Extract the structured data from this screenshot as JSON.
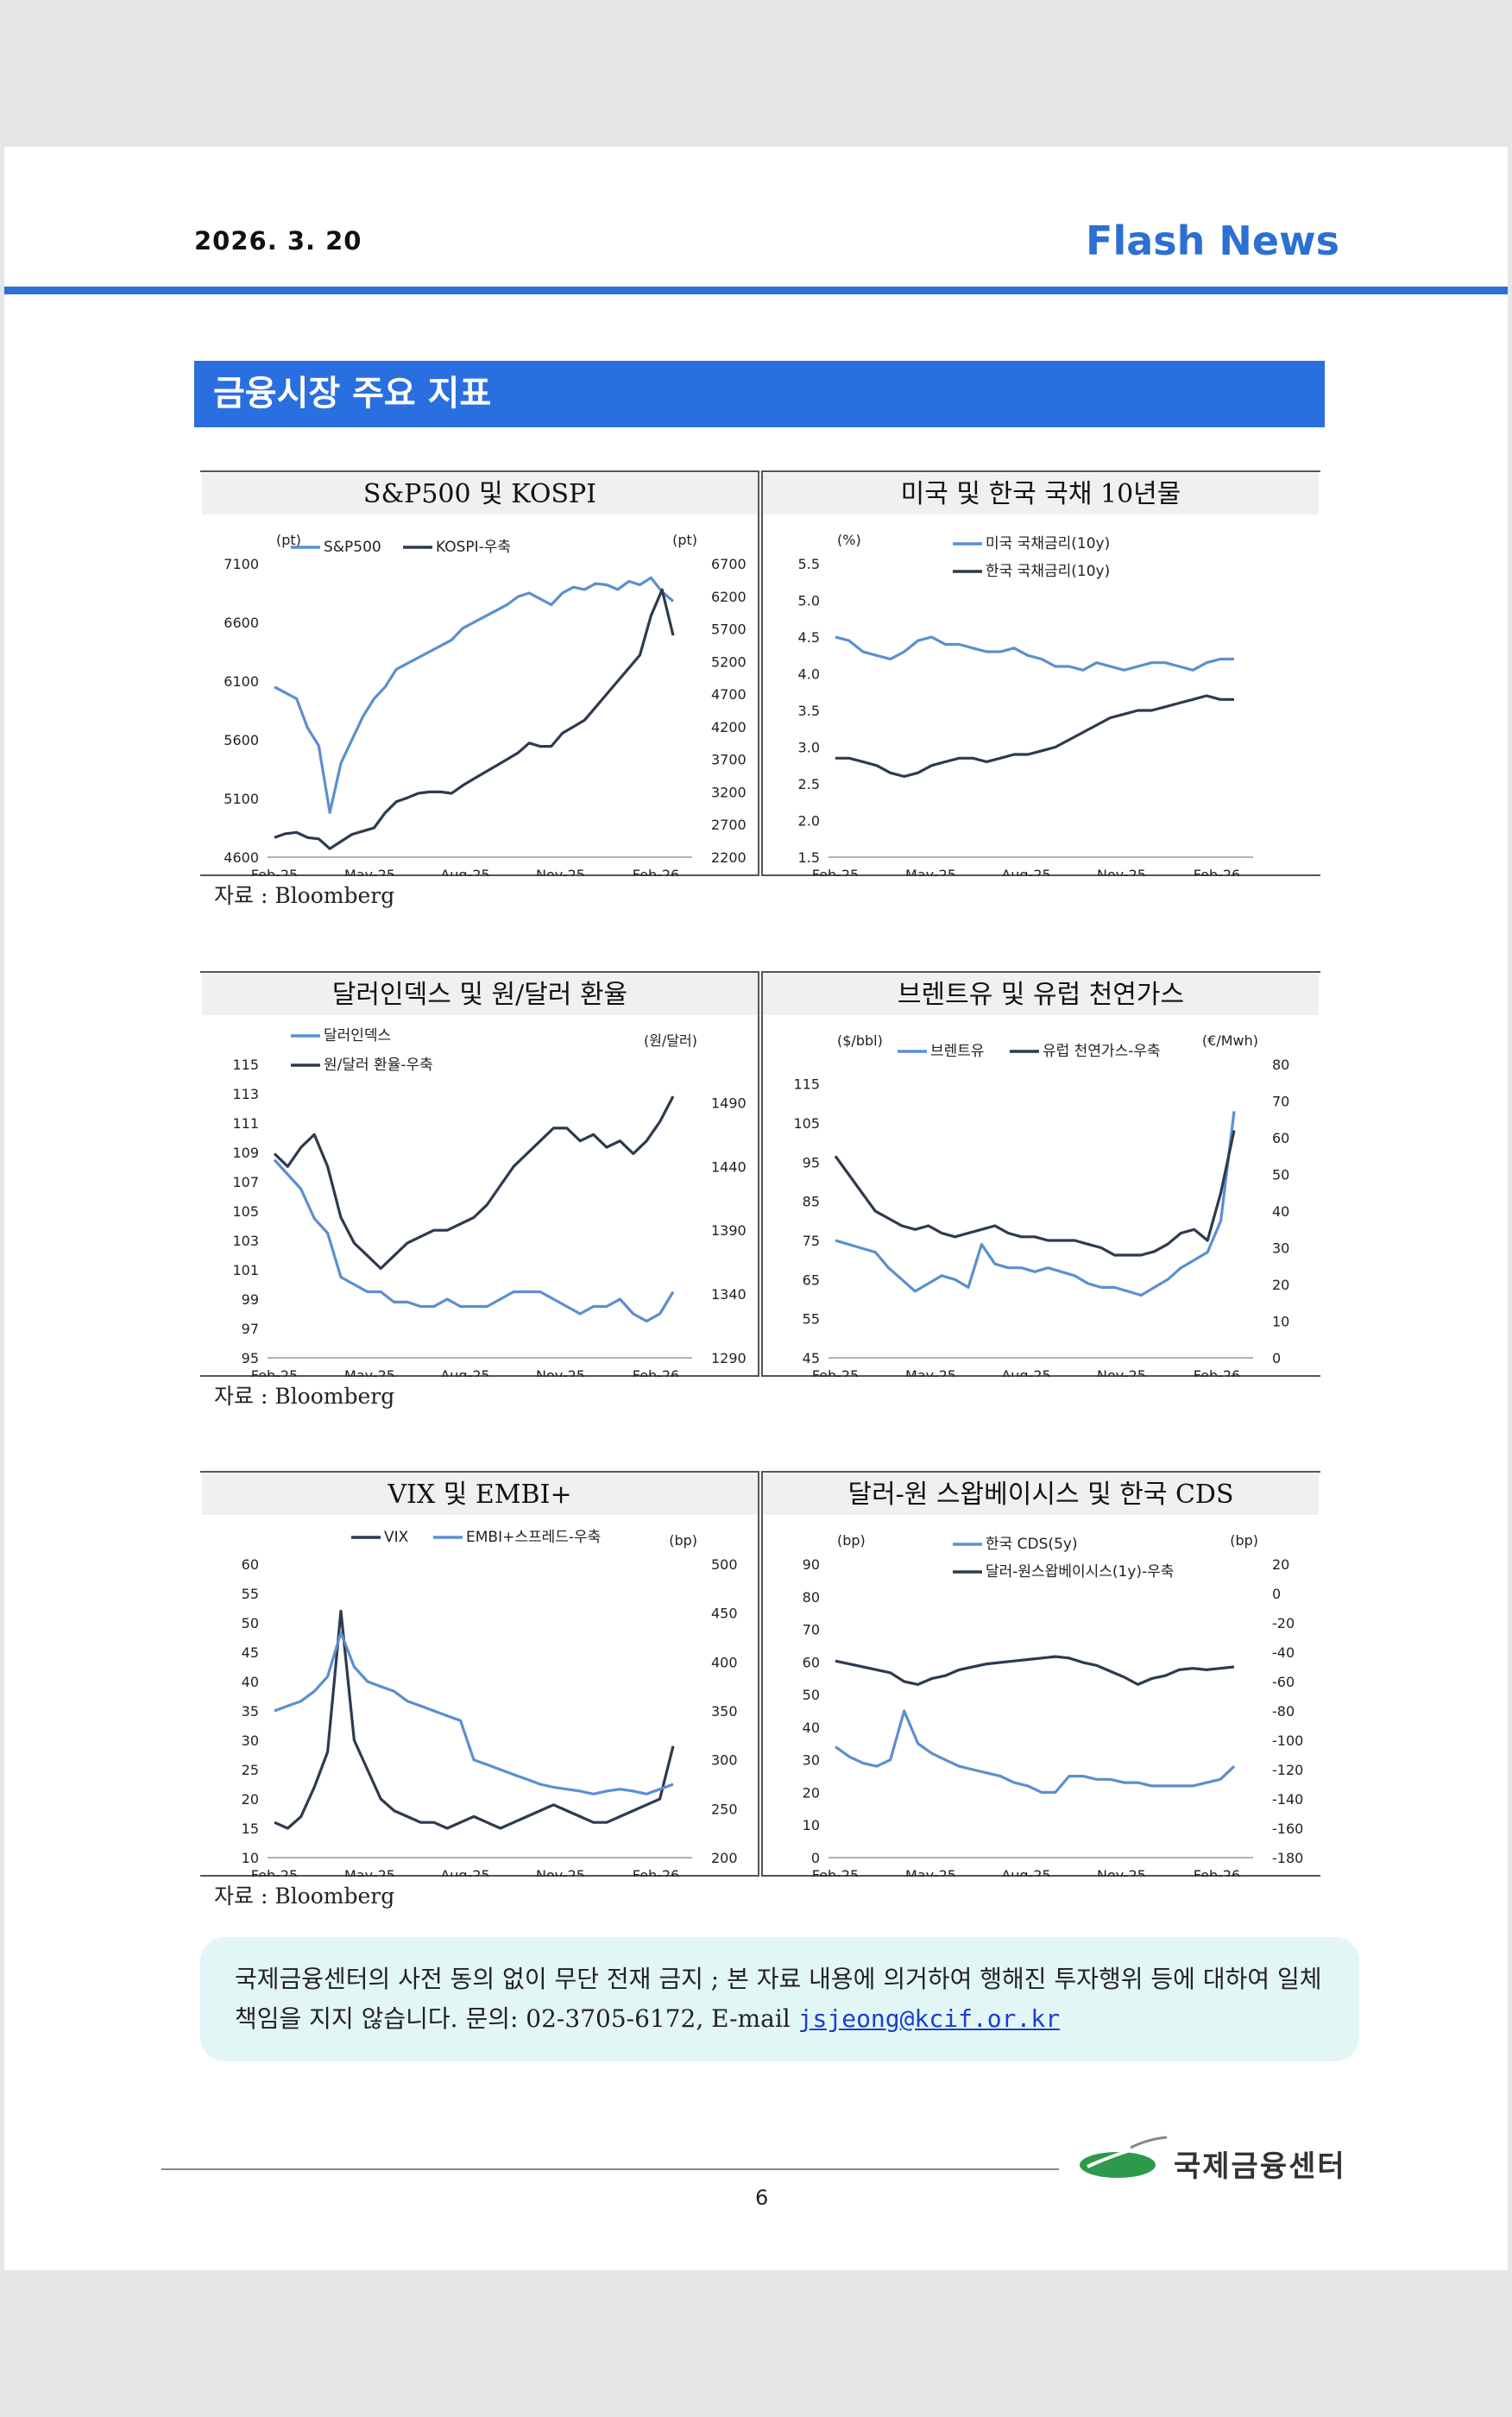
{
  "header": {
    "date": "2026. 3. 20",
    "brand": "Flash News"
  },
  "section_title": "금융시장 주요 지표",
  "sources": [
    "자료 : Bloomberg",
    "자료 : Bloomberg",
    "자료 : Bloomberg"
  ],
  "notice": {
    "text": "국제금융센터의 사전 동의 없이 무단 전재 금지 ; 본 자료 내용에 의거하여 행해진 투자행위 등에 대하여 일체 책임을 지지 않습니다. 문의: 02-3705-6172, E-mail ",
    "email": "jsjeong@kcif.or.kr"
  },
  "footer": {
    "page_number": "6",
    "org_name": "국제금융센터"
  },
  "colors": {
    "light_series": "#5b8fd0",
    "dark_series": "#2e3a4e",
    "header_bg": "#2a6fe0",
    "panel_title_bg": "#eef1ee"
  },
  "chart_data": [
    {
      "type": "line",
      "title": "S&P500 및 KOSPI",
      "x_ticks": [
        "Feb-25",
        "May-25",
        "Aug-25",
        "Nov-25",
        "Feb-26"
      ],
      "left_unit": "(pt)",
      "right_unit": "(pt)",
      "ylim_left": [
        4600,
        7100
      ],
      "yticks_left": [
        4600,
        5100,
        5600,
        6100,
        6600,
        7100
      ],
      "ylim_right": [
        2200,
        6700
      ],
      "yticks_right": [
        2200,
        2700,
        3200,
        3700,
        4200,
        4700,
        5200,
        5700,
        6200,
        6700
      ],
      "series": [
        {
          "name": "S&P500",
          "axis": "left",
          "style": "light",
          "values": [
            6050,
            6000,
            5950,
            5700,
            5550,
            4980,
            5400,
            5600,
            5800,
            5950,
            6050,
            6200,
            6250,
            6300,
            6350,
            6400,
            6450,
            6550,
            6600,
            6650,
            6700,
            6750,
            6820,
            6850,
            6800,
            6750,
            6850,
            6900,
            6880,
            6930,
            6920,
            6880,
            6950,
            6920,
            6980,
            6860,
            6780
          ]
        },
        {
          "name": "KOSPI-우축",
          "axis": "right",
          "style": "dark",
          "values": [
            2500,
            2560,
            2580,
            2500,
            2480,
            2330,
            2440,
            2550,
            2600,
            2650,
            2880,
            3050,
            3110,
            3180,
            3200,
            3200,
            3180,
            3300,
            3400,
            3500,
            3600,
            3700,
            3800,
            3950,
            3900,
            3900,
            4100,
            4200,
            4300,
            4500,
            4700,
            4900,
            5100,
            5300,
            5900,
            6300,
            5600
          ]
        }
      ]
    },
    {
      "type": "line",
      "title": "미국 및 한국 국채 10년물",
      "x_ticks": [
        "Feb-25",
        "May-25",
        "Aug-25",
        "Nov-25",
        "Feb-26"
      ],
      "left_unit": "(%)",
      "ylim_left": [
        1.5,
        5.5
      ],
      "yticks_left": [
        "1.5",
        "2.0",
        "2.5",
        "3.0",
        "3.5",
        "4.0",
        "4.5",
        "5.0",
        "5.5"
      ],
      "series": [
        {
          "name": "미국 국채금리(10y)",
          "axis": "left",
          "style": "light",
          "values": [
            4.5,
            4.45,
            4.3,
            4.25,
            4.2,
            4.3,
            4.45,
            4.5,
            4.4,
            4.4,
            4.35,
            4.3,
            4.3,
            4.35,
            4.25,
            4.2,
            4.1,
            4.1,
            4.05,
            4.15,
            4.1,
            4.05,
            4.1,
            4.15,
            4.15,
            4.1,
            4.05,
            4.15,
            4.2,
            4.2
          ]
        },
        {
          "name": "한국 국채금리(10y)",
          "axis": "left",
          "style": "dark",
          "values": [
            2.85,
            2.85,
            2.8,
            2.75,
            2.65,
            2.6,
            2.65,
            2.75,
            2.8,
            2.85,
            2.85,
            2.8,
            2.85,
            2.9,
            2.9,
            2.95,
            3.0,
            3.1,
            3.2,
            3.3,
            3.4,
            3.45,
            3.5,
            3.5,
            3.55,
            3.6,
            3.65,
            3.7,
            3.65,
            3.65
          ]
        }
      ]
    },
    {
      "type": "line",
      "title": "달러인덱스 및 원/달러 환율",
      "x_ticks": [
        "Feb-25",
        "May-25",
        "Aug-25",
        "Nov-25",
        "Feb-26"
      ],
      "right_unit": "(원/달러)",
      "ylim_left": [
        95,
        115
      ],
      "yticks_left": [
        95,
        97,
        99,
        101,
        103,
        105,
        107,
        109,
        111,
        113,
        115
      ],
      "ylim_right": [
        1290,
        1520
      ],
      "yticks_right": [
        1290,
        1340,
        1390,
        1440,
        1490
      ],
      "series": [
        {
          "name": "달러인덱스",
          "axis": "left",
          "style": "light",
          "values": [
            108.5,
            107.5,
            106.5,
            104.5,
            103.5,
            100.5,
            100.0,
            99.5,
            99.5,
            98.8,
            98.8,
            98.5,
            98.5,
            99.0,
            98.5,
            98.5,
            98.5,
            99.0,
            99.5,
            99.5,
            99.5,
            99.0,
            98.5,
            98.0,
            98.5,
            98.5,
            99.0,
            98.0,
            97.5,
            98.0,
            99.5
          ]
        },
        {
          "name": "원/달러 환율-우축",
          "axis": "right",
          "style": "dark",
          "values": [
            1450,
            1440,
            1455,
            1465,
            1440,
            1400,
            1380,
            1370,
            1360,
            1370,
            1380,
            1385,
            1390,
            1390,
            1395,
            1400,
            1410,
            1425,
            1440,
            1450,
            1460,
            1470,
            1470,
            1460,
            1465,
            1455,
            1460,
            1450,
            1460,
            1475,
            1495
          ]
        }
      ]
    },
    {
      "type": "line",
      "title": "브렌트유 및 유럽 천연가스",
      "x_ticks": [
        "Feb-25",
        "May-25",
        "Aug-25",
        "Nov-25",
        "Feb-26"
      ],
      "left_unit": "($/bbl)",
      "right_unit": "(€/Mwh)",
      "ylim_left": [
        45,
        120
      ],
      "yticks_left": [
        45,
        55,
        65,
        75,
        85,
        95,
        105,
        115
      ],
      "ylim_right": [
        0,
        80
      ],
      "yticks_right": [
        0,
        10,
        20,
        30,
        40,
        50,
        60,
        70,
        80
      ],
      "series": [
        {
          "name": "브렌트유",
          "axis": "left",
          "style": "light",
          "values": [
            75,
            74,
            73,
            72,
            68,
            65,
            62,
            64,
            66,
            65,
            63,
            74,
            69,
            68,
            68,
            67,
            68,
            67,
            66,
            64,
            63,
            63,
            62,
            61,
            63,
            65,
            68,
            70,
            72,
            80,
            108
          ]
        },
        {
          "name": "유럽 천연가스-우축",
          "axis": "right",
          "style": "dark",
          "values": [
            55,
            50,
            45,
            40,
            38,
            36,
            35,
            36,
            34,
            33,
            34,
            35,
            36,
            34,
            33,
            33,
            32,
            32,
            32,
            31,
            30,
            28,
            28,
            28,
            29,
            31,
            34,
            35,
            32,
            45,
            62
          ]
        }
      ]
    },
    {
      "type": "line",
      "title": "VIX 및 EMBI+",
      "x_ticks": [
        "Feb-25",
        "May-25",
        "Aug-25",
        "Nov-25",
        "Feb-26"
      ],
      "right_unit": "(bp)",
      "ylim_left": [
        10,
        60
      ],
      "yticks_left": [
        10,
        15,
        20,
        25,
        30,
        35,
        40,
        45,
        50,
        55,
        60
      ],
      "ylim_right": [
        200,
        500
      ],
      "yticks_right": [
        200,
        250,
        300,
        350,
        400,
        450,
        500
      ],
      "series": [
        {
          "name": "VIX",
          "axis": "left",
          "style": "dark",
          "values": [
            16,
            15,
            17,
            22,
            28,
            52,
            30,
            25,
            20,
            18,
            17,
            16,
            16,
            15,
            16,
            17,
            16,
            15,
            16,
            17,
            18,
            19,
            18,
            17,
            16,
            16,
            17,
            18,
            19,
            20,
            29
          ]
        },
        {
          "name": "EMBI+스프레드-우축",
          "axis": "right",
          "style": "light",
          "values": [
            350,
            355,
            360,
            370,
            385,
            430,
            395,
            380,
            375,
            370,
            360,
            355,
            350,
            345,
            340,
            300,
            295,
            290,
            285,
            280,
            275,
            272,
            270,
            268,
            265,
            268,
            270,
            268,
            265,
            270,
            275
          ]
        }
      ]
    },
    {
      "type": "line",
      "title": "달러-원 스왑베이시스 및 한국 CDS",
      "x_ticks": [
        "Feb-25",
        "May-25",
        "Aug-25",
        "Nov-25",
        "Feb-26"
      ],
      "left_unit": "(bp)",
      "right_unit": "(bp)",
      "ylim_left": [
        0,
        90
      ],
      "yticks_left": [
        0,
        10,
        20,
        30,
        40,
        50,
        60,
        70,
        80,
        90
      ],
      "ylim_right": [
        -180,
        20
      ],
      "yticks_right": [
        -180,
        -160,
        -140,
        -120,
        -100,
        -80,
        -60,
        -40,
        -20,
        0,
        20
      ],
      "series": [
        {
          "name": "한국 CDS(5y)",
          "axis": "left",
          "style": "light",
          "values": [
            34,
            31,
            29,
            28,
            30,
            45,
            35,
            32,
            30,
            28,
            27,
            26,
            25,
            23,
            22,
            20,
            20,
            25,
            25,
            24,
            24,
            23,
            23,
            22,
            22,
            22,
            22,
            23,
            24,
            28
          ]
        },
        {
          "name": "달러-원스왑베이시스(1y)-우축",
          "axis": "right",
          "style": "dark",
          "values": [
            -46,
            -48,
            -50,
            -52,
            -54,
            -60,
            -62,
            -58,
            -56,
            -52,
            -50,
            -48,
            -47,
            -46,
            -45,
            -44,
            -43,
            -44,
            -47,
            -49,
            -53,
            -57,
            -62,
            -58,
            -56,
            -52,
            -51,
            -52,
            -51,
            -50
          ]
        }
      ]
    }
  ]
}
